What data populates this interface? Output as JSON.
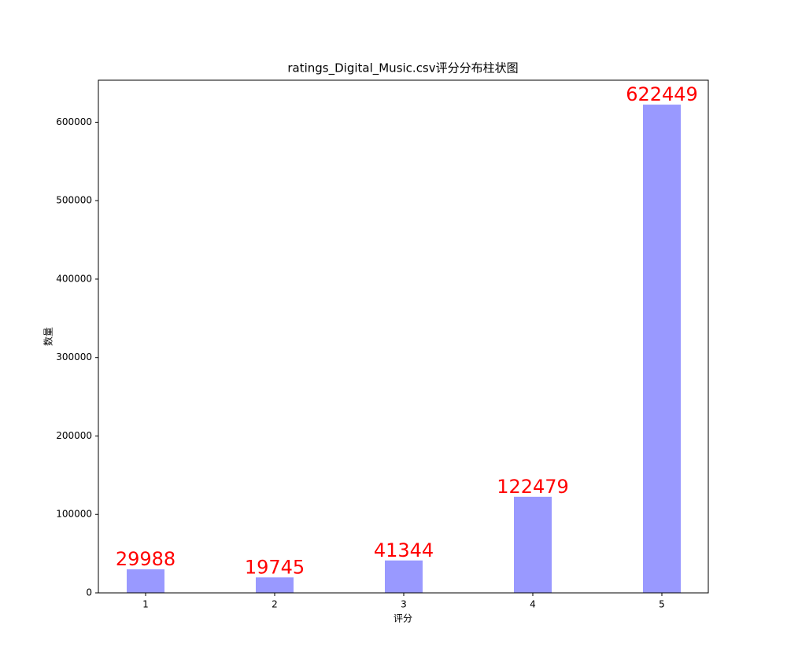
{
  "chart_data": {
    "type": "bar",
    "title": "ratings_Digital_Music.csv评分分布柱状图",
    "x_label": "评分",
    "y_label": "数量",
    "categories": [
      "1",
      "2",
      "3",
      "4",
      "5"
    ],
    "values": [
      29988,
      19745,
      41344,
      122479,
      622449
    ],
    "color": "#9999ff",
    "value_label_color": "#ff0000",
    "ylim": [
      0,
      653571
    ],
    "yticks": [
      0,
      100000,
      200000,
      300000,
      400000,
      500000,
      600000
    ],
    "grid": false
  }
}
